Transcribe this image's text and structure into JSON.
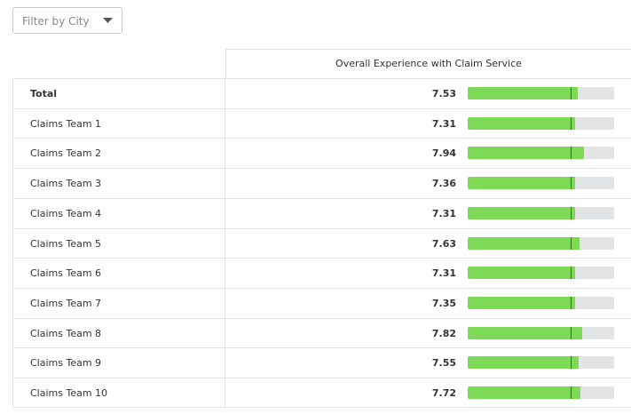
{
  "filter": {
    "label": "Filter by City"
  },
  "table": {
    "column_header": "Overall Experience with Claim Service",
    "xlim": [
      0,
      10
    ],
    "benchmark": 7,
    "colors": {
      "bar": "#7ed957",
      "track": "#e3e4e5",
      "marker": "#3a6b2a"
    },
    "rows": [
      {
        "label": "Total",
        "value": 7.53
      },
      {
        "label": "Claims Team 1",
        "value": 7.31
      },
      {
        "label": "Claims Team 2",
        "value": 7.94
      },
      {
        "label": "Claims Team 3",
        "value": 7.36
      },
      {
        "label": "Claims Team 4",
        "value": 7.31
      },
      {
        "label": "Claims Team 5",
        "value": 7.63
      },
      {
        "label": "Claims Team 6",
        "value": 7.31
      },
      {
        "label": "Claims Team 7",
        "value": 7.35
      },
      {
        "label": "Claims Team 8",
        "value": 7.82
      },
      {
        "label": "Claims Team 9",
        "value": 7.55
      },
      {
        "label": "Claims Team 10",
        "value": 7.72
      }
    ]
  }
}
